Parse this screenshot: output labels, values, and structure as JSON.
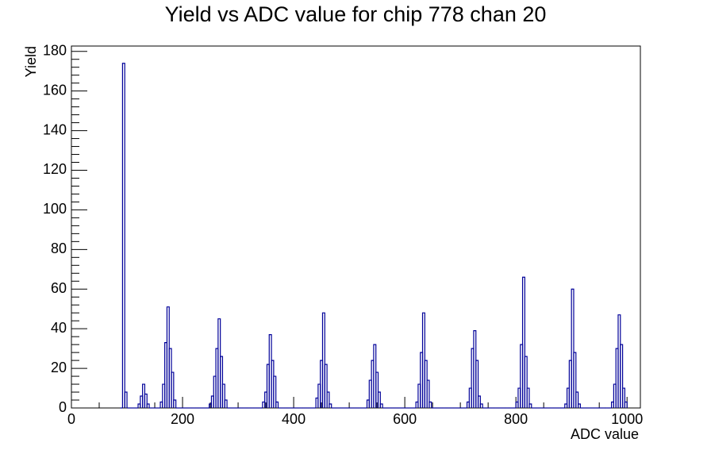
{
  "chart_data": {
    "type": "histogram",
    "title": "Yield vs ADC value for chip 778 chan 20",
    "x_label": "ADC value",
    "y_label": "Yield",
    "color": "#000099",
    "xlim": [
      0,
      1024
    ],
    "ylim": [
      0,
      182.7
    ],
    "xticks": [
      0,
      200,
      400,
      600,
      800,
      1000
    ],
    "yticks": [
      0,
      20,
      40,
      60,
      80,
      100,
      120,
      140,
      160,
      180
    ],
    "bins": [
      88,
      92,
      96,
      100,
      104,
      108,
      112,
      116,
      120,
      124,
      128,
      132,
      136,
      140,
      144,
      148,
      152,
      156,
      160,
      164,
      168,
      172,
      176,
      180,
      184,
      188,
      192,
      196,
      200,
      204,
      208,
      212,
      216,
      220,
      224,
      228,
      232,
      236,
      240,
      244,
      248,
      252,
      256,
      260,
      264,
      268,
      272,
      276,
      280,
      284,
      288,
      292,
      296,
      300,
      304,
      308,
      312,
      316,
      320,
      324,
      328,
      332,
      336,
      340,
      344,
      348,
      352,
      356,
      360,
      364,
      368,
      372,
      376,
      380,
      384,
      388,
      392,
      396,
      400,
      404,
      408,
      412,
      416,
      420,
      424,
      428,
      432,
      436,
      440,
      444,
      448,
      452,
      456,
      460,
      464,
      468,
      472,
      476,
      480,
      484,
      488,
      492,
      496,
      500,
      504,
      508,
      512,
      516,
      520,
      524,
      528,
      532,
      536,
      540,
      544,
      548,
      552,
      556,
      560,
      564,
      568,
      572,
      576,
      580,
      584,
      588,
      592,
      596,
      600,
      604,
      608,
      612,
      616,
      620,
      624,
      628,
      632,
      636,
      640,
      644,
      648,
      652,
      656,
      660,
      664,
      668,
      672,
      676,
      680,
      684,
      688,
      692,
      696,
      700,
      704,
      708,
      712,
      716,
      720,
      724,
      728,
      732,
      736,
      740,
      744,
      748,
      752,
      756,
      760,
      764,
      768,
      772,
      776,
      780,
      784,
      788,
      792,
      796,
      800,
      804,
      808,
      812,
      816,
      820,
      824,
      828,
      832,
      836,
      840,
      844,
      848,
      852,
      856,
      860,
      864,
      868,
      872,
      876,
      880,
      884,
      888,
      892,
      896,
      900,
      904,
      908,
      912,
      916,
      920,
      924,
      928,
      932,
      936,
      940,
      944,
      948,
      952,
      956,
      960,
      964,
      968,
      972,
      976,
      980,
      984,
      988,
      992,
      996,
      1000
    ],
    "values": [
      0,
      174,
      8,
      0,
      0,
      0,
      0,
      0,
      2,
      6,
      12,
      7,
      2,
      0,
      0,
      0,
      0,
      0,
      3,
      12,
      33,
      51,
      30,
      18,
      4,
      0,
      0,
      0,
      0,
      0,
      0,
      0,
      0,
      0,
      0,
      0,
      0,
      0,
      0,
      0,
      2,
      6,
      16,
      30,
      45,
      26,
      12,
      4,
      0,
      0,
      0,
      0,
      0,
      0,
      0,
      0,
      0,
      0,
      0,
      0,
      0,
      0,
      0,
      0,
      3,
      8,
      22,
      37,
      24,
      16,
      3,
      0,
      0,
      0,
      0,
      0,
      0,
      0,
      0,
      0,
      0,
      0,
      0,
      0,
      0,
      0,
      0,
      0,
      5,
      12,
      24,
      48,
      22,
      8,
      2,
      0,
      0,
      0,
      0,
      0,
      0,
      0,
      0,
      0,
      0,
      0,
      0,
      0,
      0,
      0,
      0,
      4,
      14,
      24,
      32,
      18,
      8,
      2,
      0,
      0,
      0,
      0,
      0,
      0,
      0,
      0,
      0,
      0,
      0,
      0,
      0,
      0,
      0,
      3,
      12,
      28,
      48,
      24,
      14,
      3,
      0,
      0,
      0,
      0,
      0,
      0,
      0,
      0,
      0,
      0,
      0,
      0,
      0,
      0,
      0,
      0,
      3,
      10,
      30,
      39,
      24,
      6,
      2,
      0,
      0,
      0,
      0,
      0,
      0,
      0,
      0,
      0,
      0,
      0,
      0,
      0,
      0,
      0,
      3,
      10,
      32,
      66,
      26,
      10,
      2,
      0,
      0,
      0,
      0,
      0,
      0,
      0,
      0,
      0,
      0,
      0,
      0,
      0,
      0,
      0,
      2,
      10,
      24,
      60,
      28,
      8,
      2,
      0,
      0,
      0,
      0,
      0,
      0,
      0,
      0,
      0,
      0,
      0,
      0,
      0,
      0,
      3,
      12,
      30,
      47,
      32,
      10,
      3
    ]
  }
}
